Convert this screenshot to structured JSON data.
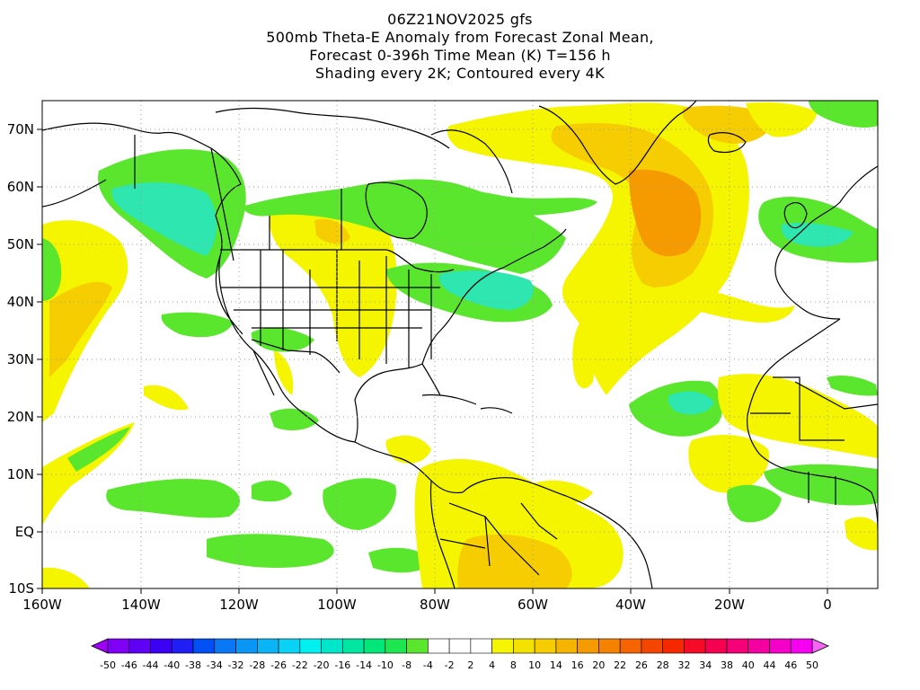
{
  "title": {
    "line1": "06Z21NOV2025 gfs",
    "line2": "500mb Theta-E Anomaly from Forecast Zonal Mean,",
    "line3": "Forecast 0-396h Time Mean (K) T=156 h",
    "line4": "Shading every 2K; Contoured every 4K"
  },
  "map": {
    "lon_range": [
      -160,
      10
    ],
    "lat_range": [
      -10,
      75
    ],
    "lon_ticks": [
      "160W",
      "140W",
      "120W",
      "100W",
      "80W",
      "60W",
      "40W",
      "20W",
      "0"
    ],
    "lat_ticks": [
      "10S",
      "EQ",
      "10N",
      "20N",
      "30N",
      "40N",
      "50N",
      "60N",
      "70N"
    ],
    "colors": {
      "green": "#5ae62d",
      "green_teal": "#2de66e",
      "teal": "#2de6b0",
      "yellow": "#f5f500",
      "yellow_gold": "#ebd200",
      "gold": "#f5b800",
      "orange": "#f59b00",
      "coast": "#000000",
      "grid": "#9a9a9a"
    }
  },
  "colorbar": {
    "labels": [
      "-50",
      "-46",
      "-44",
      "-40",
      "-38",
      "-34",
      "-32",
      "-28",
      "-26",
      "-22",
      "-20",
      "-16",
      "-14",
      "-10",
      "-8",
      "-4",
      "-2",
      "2",
      "4",
      "8",
      "10",
      "14",
      "16",
      "20",
      "22",
      "26",
      "28",
      "32",
      "34",
      "38",
      "40",
      "44",
      "46",
      "50"
    ],
    "colors": [
      "#a000f5",
      "#8000f5",
      "#6000f5",
      "#3c00f5",
      "#1e1ef5",
      "#0050f5",
      "#0a78f5",
      "#0a96f5",
      "#0ab4f5",
      "#0ad2f5",
      "#00f0f0",
      "#00e6c8",
      "#00e6a0",
      "#00e678",
      "#1ee650",
      "#5ae62d",
      "#ffffff",
      "#ffffff",
      "#ffffff",
      "#f5f500",
      "#f5e100",
      "#f5cd00",
      "#f5b400",
      "#f59b00",
      "#f58200",
      "#f56400",
      "#f54600",
      "#f52800",
      "#f50a28",
      "#f50050",
      "#f50078",
      "#f500a0",
      "#f500c8",
      "#f500f0",
      "#f564f5"
    ]
  }
}
